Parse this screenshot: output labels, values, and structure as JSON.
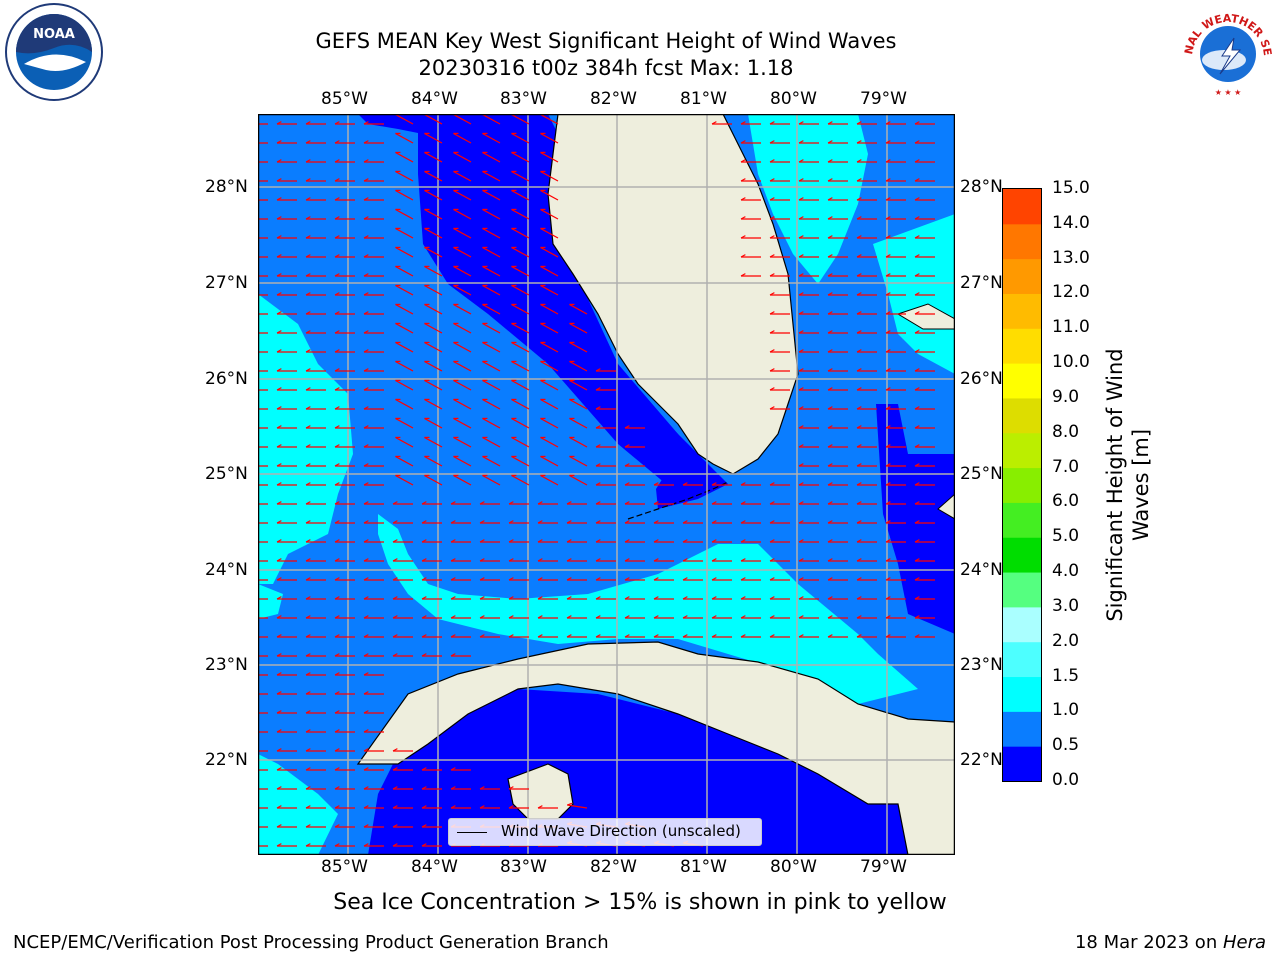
{
  "title": {
    "line1": "GEFS MEAN Key West Significant Height of Wind Waves",
    "line2": "20230316 t00z 384h fcst   Max: 1.18"
  },
  "map": {
    "lon_labels": [
      "85°W",
      "84°W",
      "83°W",
      "82°W",
      "81°W",
      "80°W",
      "79°W"
    ],
    "lat_labels": [
      "28°N",
      "27°N",
      "26°N",
      "25°N",
      "24°N",
      "23°N",
      "22°N"
    ],
    "legend_label": "Wind Wave Direction (unscaled)",
    "colors": {
      "land": "#eeeedd",
      "coast": "#000000",
      "arrow": "#ff0000",
      "grid": "#b0b0b0"
    }
  },
  "colorbar": {
    "label_line1": "Significant Height of Wind",
    "label_line2": "Waves [m]",
    "ticks": [
      "15.0",
      "14.0",
      "13.0",
      "12.0",
      "11.0",
      "10.0",
      "9.0",
      "8.0",
      "7.0",
      "6.0",
      "5.0",
      "4.0",
      "3.0",
      "2.0",
      "1.5",
      "1.0",
      "0.5",
      "0.0"
    ],
    "colors": [
      "#0000ff",
      "#0a7dff",
      "#00ffff",
      "#4dffff",
      "#aaffff",
      "#55ff80",
      "#00dd00",
      "#44ee22",
      "#88ee00",
      "#bbee00",
      "#dddd00",
      "#ffff00",
      "#ffdd00",
      "#ffbb00",
      "#ff9900",
      "#ff7700",
      "#ff4400"
    ]
  },
  "logos": {
    "noaa": "NOAA",
    "nws_text": "NATIONAL WEATHER SERVICE"
  },
  "note": "Sea Ice Concentration > 15% is shown in pink to yellow",
  "footer": {
    "left": "NCEP/EMC/Verification Post Processing Product Generation Branch",
    "right_date": "18 Mar 2023 on ",
    "right_host": "Hera"
  }
}
